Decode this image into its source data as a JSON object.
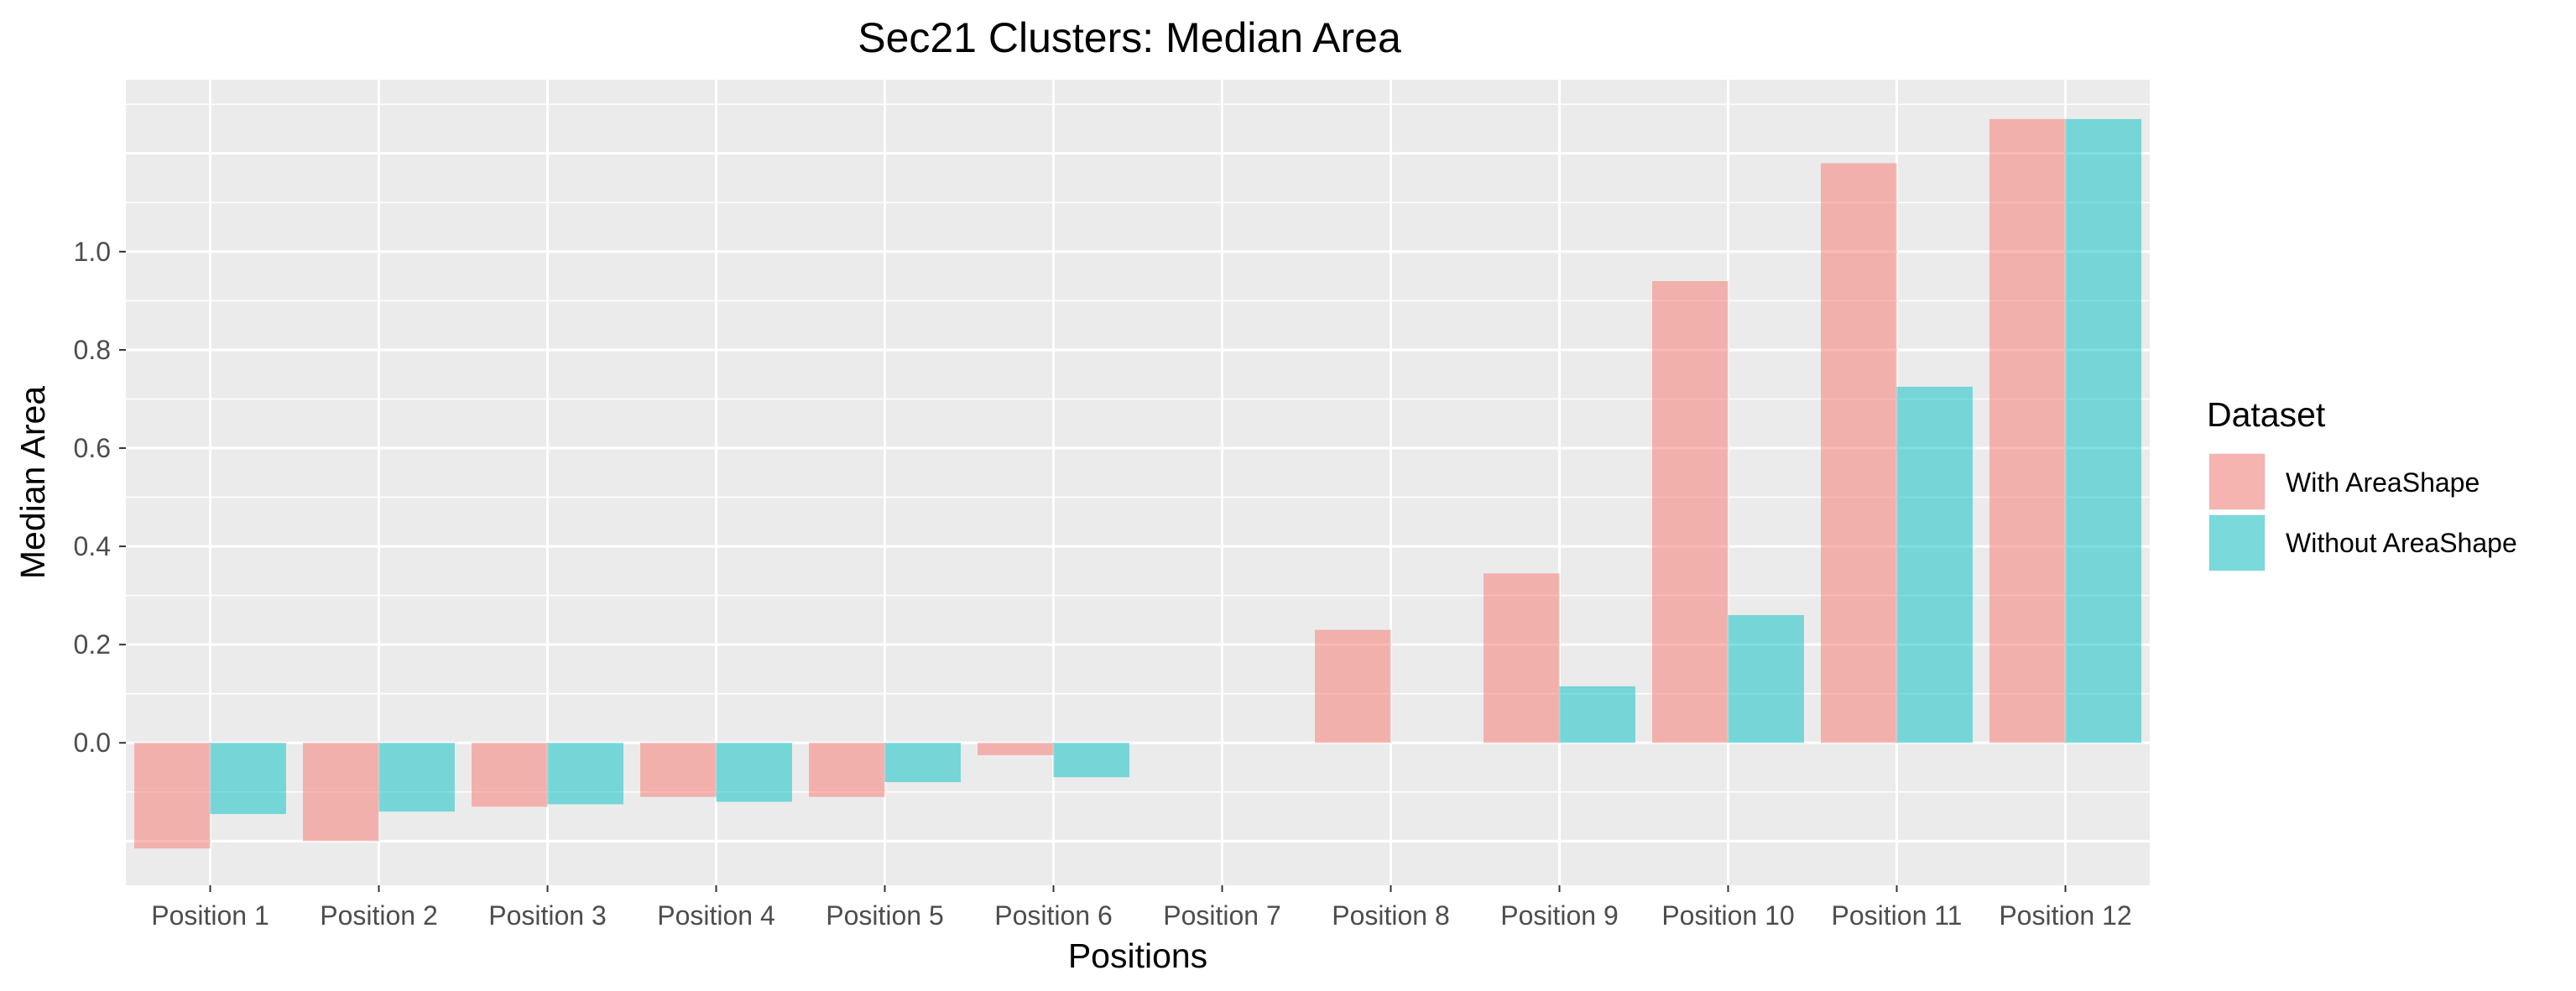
{
  "chart_data": {
    "type": "bar",
    "title": "Sec21 Clusters: Median Area",
    "xlabel": "Positions",
    "ylabel": "Median Area",
    "categories": [
      "Position 1",
      "Position 2",
      "Position 3",
      "Position 4",
      "Position 5",
      "Position 6",
      "Position 7",
      "Position 8",
      "Position 9",
      "Position 10",
      "Position 11",
      "Position 12"
    ],
    "series": [
      {
        "name": "With AreaShape",
        "color": "#F8766D",
        "values": [
          -0.215,
          -0.2,
          -0.13,
          -0.11,
          -0.11,
          -0.025,
          0,
          0.23,
          0.345,
          0.94,
          1.18,
          1.27
        ]
      },
      {
        "name": "Without AreaShape",
        "color": "#00BFC4",
        "values": [
          -0.145,
          -0.14,
          -0.125,
          -0.12,
          -0.08,
          -0.07,
          0,
          0,
          0.115,
          0.26,
          0.725,
          1.27
        ]
      }
    ],
    "yticks": [
      0.0,
      0.2,
      0.4,
      0.6,
      0.8,
      1.0
    ],
    "yticklabels": [
      "0.0",
      "0.2",
      "0.4",
      "0.6",
      "0.8",
      "1.0"
    ],
    "ylim": [
      -0.29,
      1.35
    ],
    "grid": true,
    "legend": {
      "title": "Dataset",
      "placement": "right"
    }
  }
}
